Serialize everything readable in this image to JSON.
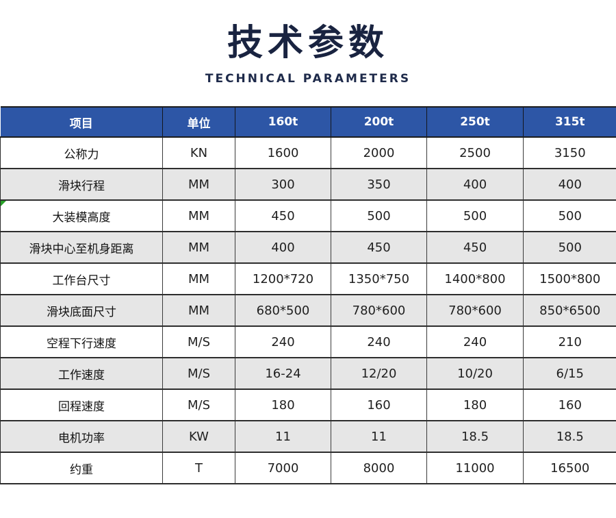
{
  "page": {
    "title": "技术参数",
    "subtitle": "TECHNICAL PARAMETERS"
  },
  "colors": {
    "title_navy": "#192340",
    "header_blue": "#2d56a6",
    "header_text": "#ffffff",
    "row_alt_gray": "#e6e6e6",
    "border_dark": "#2d2d2d",
    "cell_text": "#1f1f1f",
    "corner_marker_green": "#28a028"
  },
  "table": {
    "columns": [
      "项目",
      "单位",
      "160t",
      "200t",
      "250t",
      "315t"
    ],
    "rows": [
      {
        "label": "公称力",
        "unit": "KN",
        "values": [
          "1600",
          "2000",
          "2500",
          "3150"
        ]
      },
      {
        "label": "滑块行程",
        "unit": "MM",
        "values": [
          "300",
          "350",
          "400",
          "400"
        ]
      },
      {
        "label": "大装模高度",
        "unit": "MM",
        "values": [
          "450",
          "500",
          "500",
          "500"
        ],
        "marker": true
      },
      {
        "label": "滑块中心至机身距离",
        "unit": "MM",
        "values": [
          "400",
          "450",
          "450",
          "500"
        ]
      },
      {
        "label": "工作台尺寸",
        "unit": "MM",
        "values": [
          "1200*720",
          "1350*750",
          "1400*800",
          "1500*800"
        ]
      },
      {
        "label": "滑块底面尺寸",
        "unit": "MM",
        "values": [
          "680*500",
          "780*600",
          "780*600",
          "850*6500"
        ]
      },
      {
        "label": "空程下行速度",
        "unit": "M/S",
        "values": [
          "240",
          "240",
          "240",
          "210"
        ]
      },
      {
        "label": "工作速度",
        "unit": "M/S",
        "values": [
          "16-24",
          "12/20",
          "10/20",
          "6/15"
        ]
      },
      {
        "label": "回程速度",
        "unit": "M/S",
        "values": [
          "180",
          "160",
          "180",
          "160"
        ]
      },
      {
        "label": "电机功率",
        "unit": "KW",
        "values": [
          "11",
          "11",
          "18.5",
          "18.5"
        ]
      },
      {
        "label": "约重",
        "unit": "T",
        "values": [
          "7000",
          "8000",
          "11000",
          "16500"
        ]
      }
    ]
  }
}
